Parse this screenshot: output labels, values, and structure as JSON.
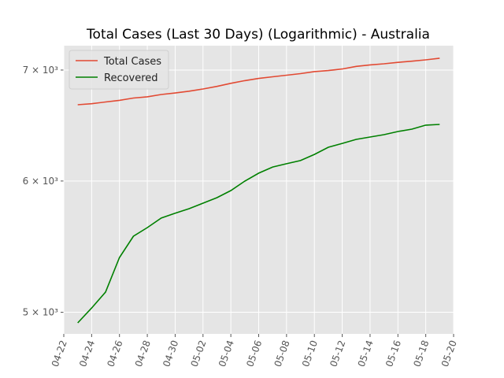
{
  "chart_data": {
    "type": "line",
    "title": "Total Cases (Last 30 Days) (Logarithmic) - Australia",
    "x": [
      "04-23",
      "04-24",
      "04-25",
      "04-26",
      "04-27",
      "04-28",
      "04-29",
      "04-30",
      "05-01",
      "05-02",
      "05-03",
      "05-04",
      "05-05",
      "05-06",
      "05-07",
      "05-08",
      "05-09",
      "05-10",
      "05-11",
      "05-12",
      "05-13",
      "05-14",
      "05-15",
      "05-16",
      "05-17",
      "05-18",
      "05-19"
    ],
    "series": [
      {
        "name": "Total Cases",
        "color": "#E24A33",
        "values": [
          6671,
          6680,
          6696,
          6712,
          6733,
          6745,
          6766,
          6780,
          6797,
          6818,
          6843,
          6872,
          6898,
          6919,
          6935,
          6950,
          6965,
          6985,
          6995,
          7010,
          7036,
          7050,
          7061,
          7075,
          7087,
          7100,
          7116
        ]
      },
      {
        "name": "Recovered",
        "color": "#008000",
        "values": [
          4927,
          5030,
          5142,
          5395,
          5557,
          5624,
          5699,
          5737,
          5774,
          5818,
          5863,
          5921,
          5999,
          6066,
          6118,
          6146,
          6173,
          6226,
          6288,
          6322,
          6357,
          6378,
          6399,
          6427,
          6448,
          6484,
          6491
        ]
      }
    ],
    "xlim": [
      "04-22",
      "05-20"
    ],
    "xticks": [
      "04-22",
      "04-24",
      "04-26",
      "04-28",
      "04-30",
      "05-02",
      "05-04",
      "05-06",
      "05-08",
      "05-10",
      "05-12",
      "05-14",
      "05-16",
      "05-18",
      "05-20"
    ],
    "ylim": [
      4852,
      7241
    ],
    "yticks": [
      {
        "value": 5000,
        "label": "5 × 10³"
      },
      {
        "value": 6000,
        "label": "6 × 10³"
      },
      {
        "value": 7000,
        "label": "7 × 10³"
      }
    ],
    "log_y": true,
    "grid": true,
    "legend": "upper left"
  }
}
